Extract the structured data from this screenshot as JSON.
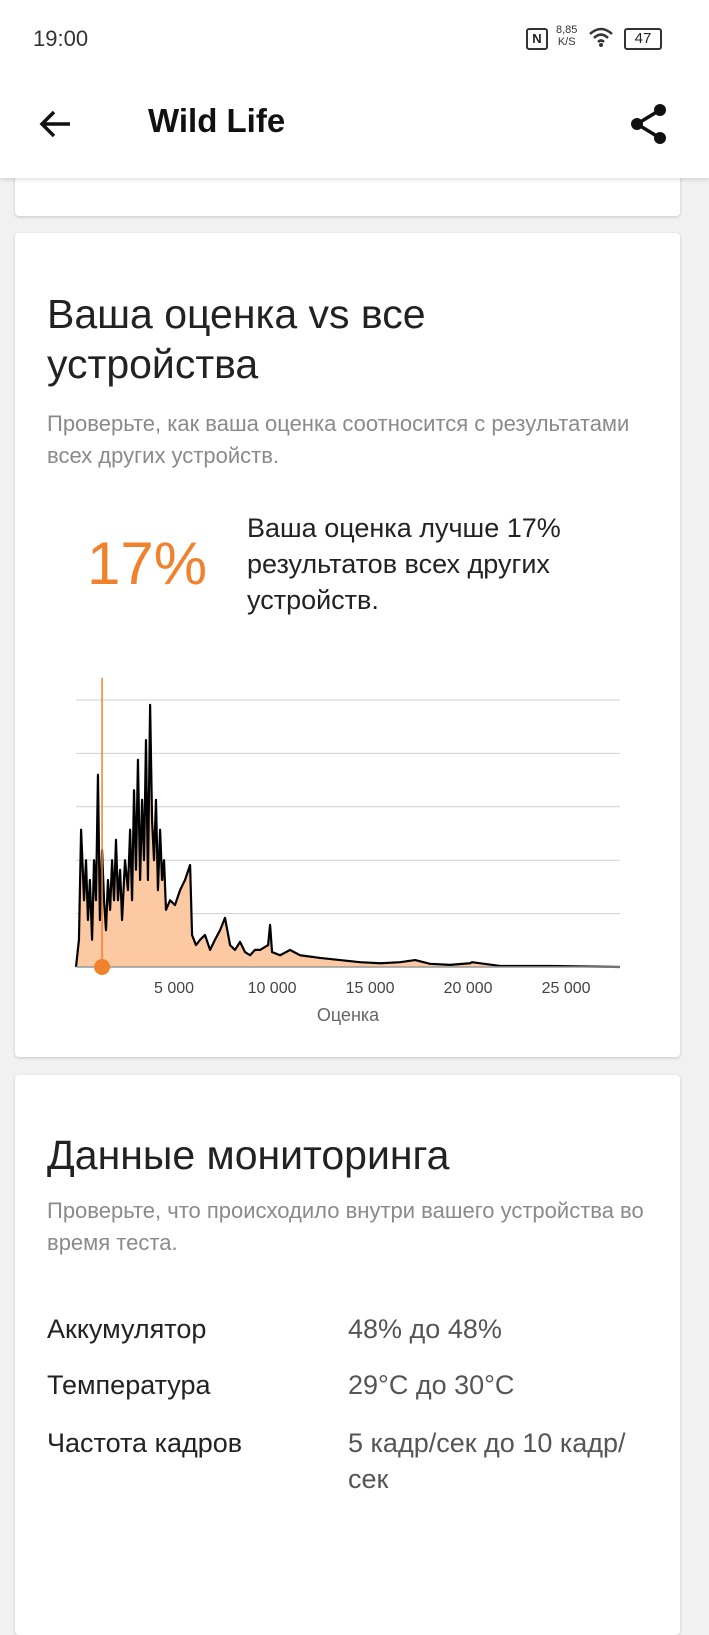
{
  "status_bar": {
    "time": "19:00",
    "speed": "8,85",
    "speed_unit": "K/S",
    "battery": "47"
  },
  "app_bar": {
    "title": "Wild Life"
  },
  "comparison_card": {
    "title": "Ваша оценка vs все устройства",
    "subtitle": "Проверьте, как ваша оценка соотносится с результатами всех других устройств.",
    "percent": "17%",
    "percent_text": "Ваша оценка лучше 17% результатов всех других устройств."
  },
  "chart_data": {
    "type": "area",
    "x_label": "Оценка",
    "color": "#000000",
    "fill": "#fcc9a2",
    "score_color": "#f0822e",
    "score": 1330,
    "x": [
      0,
      150,
      260,
      410,
      510,
      610,
      710,
      820,
      920,
      1020,
      1120,
      1220,
      1330,
      1430,
      1530,
      1630,
      1740,
      1840,
      1940,
      2040,
      2140,
      2250,
      2350,
      2500,
      2650,
      2760,
      2860,
      2960,
      3060,
      3160,
      3270,
      3370,
      3470,
      3570,
      3670,
      3780,
      3880,
      3980,
      4080,
      4180,
      4290,
      4390,
      4490,
      4590,
      4800,
      5050,
      5310,
      5560,
      5820,
      5920,
      6120,
      6330,
      6580,
      6840,
      7090,
      7350,
      7600,
      7860,
      8110,
      8370,
      8620,
      8880,
      9130,
      9390,
      9800,
      9900,
      10000,
      10410,
      10920,
      11430,
      12450,
      13470,
      14490,
      15510,
      16530,
      17300,
      18060,
      19080,
      20100,
      20200,
      21630,
      24180,
      27750
    ],
    "values": [
      0,
      0.51,
      2.57,
      1.25,
      2.0,
      0.88,
      1.63,
      0.51,
      2.0,
      1.25,
      3.6,
      0.88,
      2.19,
      1.25,
      0.69,
      1.63,
      1.07,
      2.0,
      1.25,
      2.38,
      1.25,
      1.82,
      0.88,
      2.0,
      1.44,
      2.57,
      1.25,
      3.31,
      1.82,
      3.88,
      1.63,
      3.13,
      2.0,
      4.25,
      1.63,
      4.91,
      2.75,
      2.0,
      3.13,
      1.44,
      2.57,
      1.63,
      2.0,
      1.07,
      1.25,
      1.16,
      1.44,
      1.63,
      1.91,
      0.6,
      0.41,
      0.51,
      0.6,
      0.32,
      0.51,
      0.69,
      0.92,
      0.41,
      0.32,
      0.47,
      0.28,
      0.22,
      0.32,
      0.32,
      0.41,
      0.79,
      0.28,
      0.22,
      0.32,
      0.22,
      0.17,
      0.13,
      0.09,
      0.07,
      0.09,
      0.13,
      0.06,
      0.04,
      0.07,
      0.09,
      0.02,
      0.02,
      0
    ],
    "xlim": [
      0,
      27750
    ],
    "xticks": [
      {
        "value": 5000,
        "label": "5 000"
      },
      {
        "value": 10000,
        "label": "10 000"
      },
      {
        "value": 15000,
        "label": "15 000"
      },
      {
        "value": 20000,
        "label": "20 000"
      },
      {
        "value": 25000,
        "label": "25 000"
      }
    ],
    "ylim": [
      0,
      5
    ],
    "yticks": [
      1,
      2,
      3,
      4,
      5
    ],
    "show_ytick_labels": false,
    "grid": true
  },
  "monitoring_card": {
    "title": "Данные мониторинга",
    "subtitle": "Проверьте, что происходило внутри вашего устройства во время теста.",
    "rows": [
      [
        "Аккумулятор",
        "48% до 48%"
      ],
      [
        "Температура",
        "29°C до 30°C"
      ],
      [
        "Частота кадров",
        "5 кадр/сек до 10 кадр/сек"
      ]
    ]
  }
}
